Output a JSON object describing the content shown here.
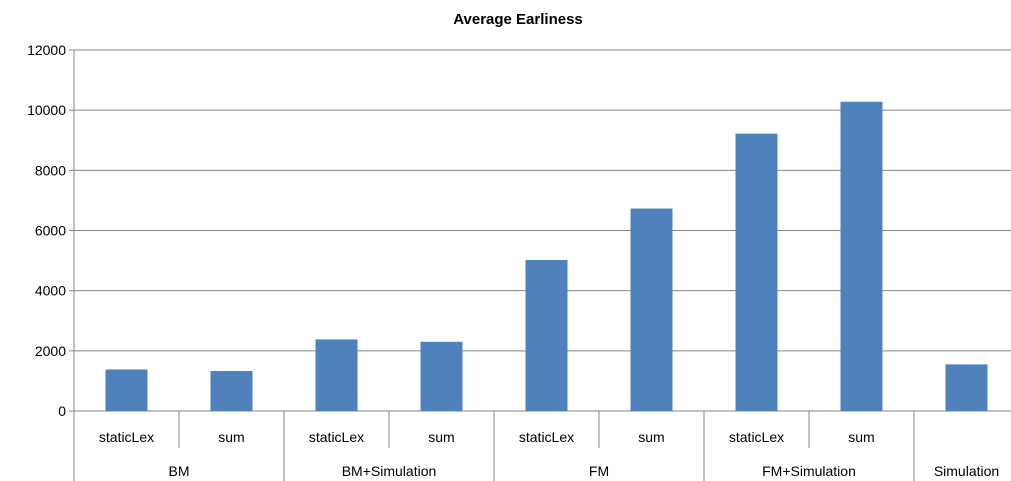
{
  "chart_data": {
    "type": "bar",
    "title": "Average Earliness",
    "xlabel": "",
    "ylabel": "",
    "ylim": [
      0,
      12000
    ],
    "yticks": [
      0,
      2000,
      4000,
      6000,
      8000,
      10000,
      12000
    ],
    "grid": true,
    "legend": "none",
    "bar_color": "#4F81BD",
    "categories": [
      {
        "group": "BM",
        "label": "staticLex",
        "value": 1380
      },
      {
        "group": "BM",
        "label": "sum",
        "value": 1330
      },
      {
        "group": "BM+Simulation",
        "label": "staticLex",
        "value": 2380
      },
      {
        "group": "BM+Simulation",
        "label": "sum",
        "value": 2300
      },
      {
        "group": "FM",
        "label": "staticLex",
        "value": 5020
      },
      {
        "group": "FM",
        "label": "sum",
        "value": 6730
      },
      {
        "group": "FM+Simulation",
        "label": "staticLex",
        "value": 9220
      },
      {
        "group": "FM+Simulation",
        "label": "sum",
        "value": 10280
      },
      {
        "group": "Simulation",
        "label": "",
        "value": 1550
      }
    ],
    "groups": [
      "BM",
      "BM+Simulation",
      "FM",
      "FM+Simulation",
      "Simulation"
    ]
  }
}
